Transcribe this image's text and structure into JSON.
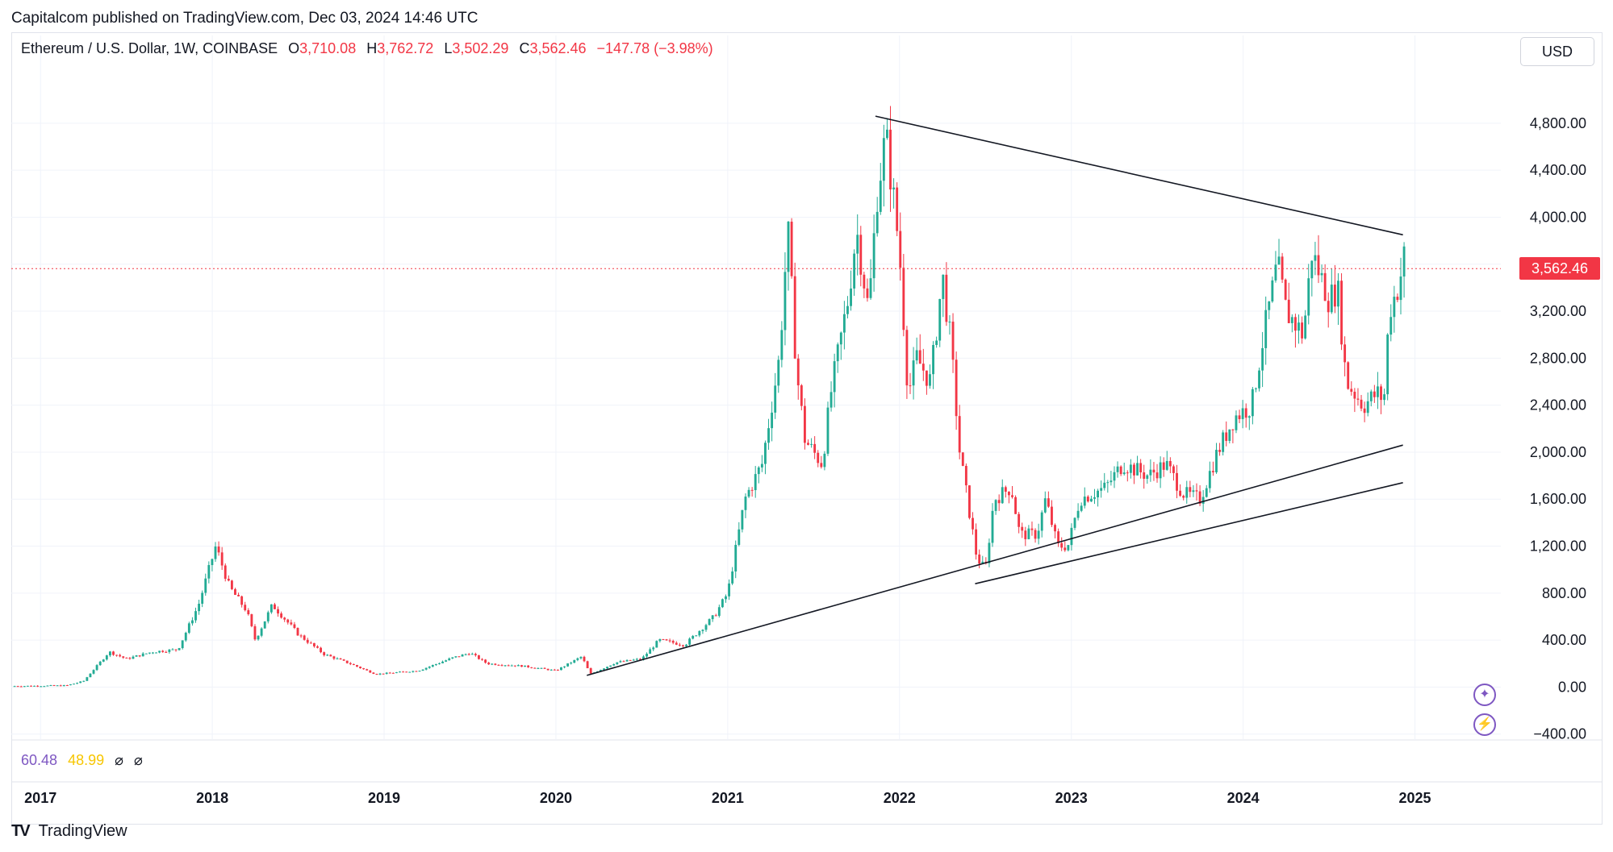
{
  "header": {
    "published": "Capitalcom published on TradingView.com, Dec 03, 2024 14:46 UTC"
  },
  "legend": {
    "symbol": "Ethereum / U.S. Dollar, 1W, COINBASE",
    "o_label": "O",
    "o_value": "3,710.08",
    "h_label": "H",
    "h_value": "3,762.72",
    "l_label": "L",
    "l_value": "3,502.29",
    "c_label": "C",
    "c_value": "3,562.46",
    "change": "−147.78 (−3.98%)"
  },
  "currency_button": "USD",
  "indicator": {
    "v1": "60.48",
    "v2": "48.99",
    "v3": "⌀",
    "v4": "⌀"
  },
  "branding": {
    "name": "TradingView",
    "logo": "TV"
  },
  "colors": {
    "up": "#22ab94",
    "down": "#f23645",
    "grid": "#f0f3fa",
    "trendline": "#131722",
    "indicator1": "#7e57c2",
    "indicator2": "#f7c600"
  },
  "buttons": {
    "assistant_icon": "sparkle-icon",
    "alert_icon": "lightning-icon"
  },
  "chart_data": {
    "type": "candlestick",
    "title": "Ethereum / U.S. Dollar, 1W, COINBASE",
    "interval": "1W",
    "currency": "USD",
    "last_price": 3562.46,
    "last_price_label": "3,562.46",
    "ylim": [
      -450,
      5300
    ],
    "y_ticks": [
      -400,
      0,
      400,
      800,
      1200,
      1600,
      2000,
      2400,
      2800,
      3200,
      3600,
      4000,
      4400,
      4800
    ],
    "y_tick_labels": [
      "−400.00",
      "0.00",
      "400.00",
      "800.00",
      "1,200.00",
      "1,600.00",
      "2,000.00",
      "2,400.00",
      "2,800.00",
      "3,200.00",
      "",
      "4,000.00",
      "4,400.00",
      "4,800.00"
    ],
    "x_tick_labels": [
      "2017",
      "2018",
      "2019",
      "2020",
      "2021",
      "2022",
      "2023",
      "2024",
      "2025"
    ],
    "x_tick_dates": [
      2017.0,
      2018.0,
      2019.0,
      2020.0,
      2021.0,
      2022.0,
      2023.0,
      2024.0,
      2025.0
    ],
    "xlim": [
      2016.83,
      2025.5
    ],
    "grid": true,
    "price_path": [
      [
        2016.83,
        8
      ],
      [
        2017.15,
        13
      ],
      [
        2017.25,
        50
      ],
      [
        2017.4,
        300
      ],
      [
        2017.5,
        240
      ],
      [
        2017.65,
        300
      ],
      [
        2017.8,
        320
      ],
      [
        2017.92,
        700
      ],
      [
        2018.02,
        1200
      ],
      [
        2018.1,
        850
      ],
      [
        2018.2,
        650
      ],
      [
        2018.25,
        400
      ],
      [
        2018.35,
        700
      ],
      [
        2018.5,
        450
      ],
      [
        2018.65,
        280
      ],
      [
        2018.8,
        200
      ],
      [
        2018.95,
        110
      ],
      [
        2019.2,
        140
      ],
      [
        2019.4,
        250
      ],
      [
        2019.5,
        290
      ],
      [
        2019.6,
        200
      ],
      [
        2019.8,
        180
      ],
      [
        2020.0,
        140
      ],
      [
        2020.15,
        260
      ],
      [
        2020.2,
        110
      ],
      [
        2020.35,
        210
      ],
      [
        2020.5,
        240
      ],
      [
        2020.6,
        400
      ],
      [
        2020.75,
        360
      ],
      [
        2020.92,
        600
      ],
      [
        2021.0,
        800
      ],
      [
        2021.1,
        1600
      ],
      [
        2021.2,
        1900
      ],
      [
        2021.3,
        2800
      ],
      [
        2021.35,
        3900
      ],
      [
        2021.4,
        2700
      ],
      [
        2021.45,
        2100
      ],
      [
        2021.55,
        1900
      ],
      [
        2021.6,
        2500
      ],
      [
        2021.7,
        3300
      ],
      [
        2021.75,
        3900
      ],
      [
        2021.82,
        3200
      ],
      [
        2021.87,
        4200
      ],
      [
        2021.92,
        4700
      ],
      [
        2021.97,
        4100
      ],
      [
        2022.0,
        3700
      ],
      [
        2022.05,
        2500
      ],
      [
        2022.1,
        2800
      ],
      [
        2022.18,
        2600
      ],
      [
        2022.25,
        3500
      ],
      [
        2022.3,
        2900
      ],
      [
        2022.35,
        2000
      ],
      [
        2022.45,
        1100
      ],
      [
        2022.5,
        1000
      ],
      [
        2022.55,
        1600
      ],
      [
        2022.65,
        1700
      ],
      [
        2022.7,
        1300
      ],
      [
        2022.8,
        1300
      ],
      [
        2022.85,
        1600
      ],
      [
        2022.92,
        1200
      ],
      [
        2022.98,
        1200
      ],
      [
        2023.05,
        1600
      ],
      [
        2023.2,
        1700
      ],
      [
        2023.3,
        1900
      ],
      [
        2023.45,
        1800
      ],
      [
        2023.55,
        1900
      ],
      [
        2023.65,
        1650
      ],
      [
        2023.75,
        1600
      ],
      [
        2023.85,
        2000
      ],
      [
        2023.95,
        2300
      ],
      [
        2024.05,
        2400
      ],
      [
        2024.12,
        3000
      ],
      [
        2024.2,
        3600
      ],
      [
        2024.25,
        3200
      ],
      [
        2024.35,
        3000
      ],
      [
        2024.4,
        3700
      ],
      [
        2024.45,
        3500
      ],
      [
        2024.5,
        3300
      ],
      [
        2024.55,
        3400
      ],
      [
        2024.6,
        2600
      ],
      [
        2024.7,
        2400
      ],
      [
        2024.78,
        2500
      ],
      [
        2024.82,
        2450
      ],
      [
        2024.85,
        3200
      ],
      [
        2024.9,
        3400
      ],
      [
        2024.93,
        3600
      ],
      [
        2024.94,
        3700
      ],
      [
        2024.95,
        3562
      ]
    ],
    "trendlines": [
      {
        "name": "",
        "x": [
          2021.86,
          2024.93
        ],
        "y": [
          4860,
          3850
        ]
      },
      {
        "name": "",
        "x": [
          2020.18,
          2024.93
        ],
        "y": [
          100,
          2060
        ]
      },
      {
        "name": "",
        "x": [
          2022.44,
          2024.93
        ],
        "y": [
          880,
          1740
        ]
      }
    ],
    "indicator_values": [
      60.48,
      48.99
    ]
  }
}
